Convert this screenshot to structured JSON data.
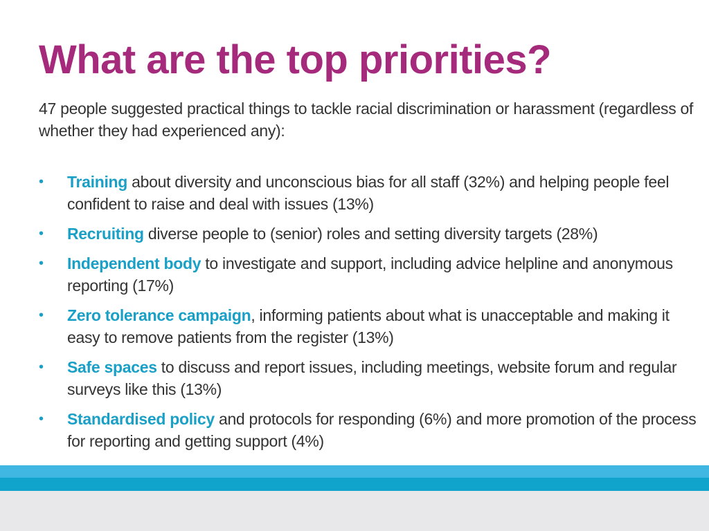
{
  "slide": {
    "title": "What are the top priorities?",
    "intro": "47 people suggested practical things to tackle racial discrimination or harassment (regardless of whether they had experienced any):"
  },
  "bullets": [
    {
      "key": "Training",
      "text": " about diversity and unconscious bias for all staff (32%) and helping people feel confident to raise and deal with issues (13%)"
    },
    {
      "key": "Recruiting",
      "text": " diverse people to (senior) roles and setting diversity targets (28%)"
    },
    {
      "key": "Independent body",
      "text": " to investigate and support, including advice helpline and anonymous reporting (17%)"
    },
    {
      "key": "Zero tolerance campaign",
      "text": ", informing patients about what is unacceptable and making it easy to remove patients from the register (13%)"
    },
    {
      "key": "Safe spaces",
      "text": " to discuss and report issues, including meetings, website forum and regular surveys like this (13%)"
    },
    {
      "key": "Standardised policy",
      "text": " and protocols for responding (6%) and more promotion of the process for reporting and getting support (4%)"
    }
  ],
  "bullet_symbol": "•",
  "colors": {
    "title": "#a52a7c",
    "accent": "#1aa0c6",
    "body_text": "#333333",
    "band_light": "#3fb7e2",
    "band_dark": "#10a3cc",
    "band_grey": "#e8e8ea"
  }
}
